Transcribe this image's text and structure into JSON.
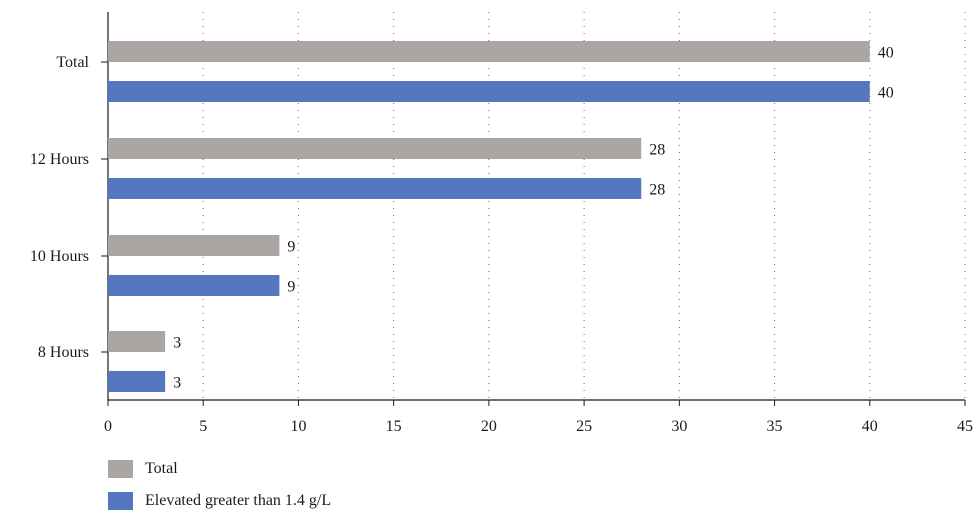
{
  "chart_data": {
    "type": "bar",
    "orientation": "horizontal",
    "categories": [
      "Total",
      "12 Hours",
      "10 Hours",
      "8 Hours"
    ],
    "series": [
      {
        "name": "Total",
        "color": "#aba5a4",
        "values": [
          40,
          28,
          9,
          3
        ]
      },
      {
        "name": "Elevated greater than 1.4 g/L",
        "color": "#5577bf",
        "values": [
          40,
          28,
          9,
          3
        ]
      }
    ],
    "xlim": [
      0,
      45
    ],
    "xticks": [
      "0",
      "5",
      "10",
      "15",
      "20",
      "25",
      "30",
      "35",
      "40",
      "45"
    ],
    "grid": "vertical dotted",
    "legend_position": "bottom-left"
  }
}
